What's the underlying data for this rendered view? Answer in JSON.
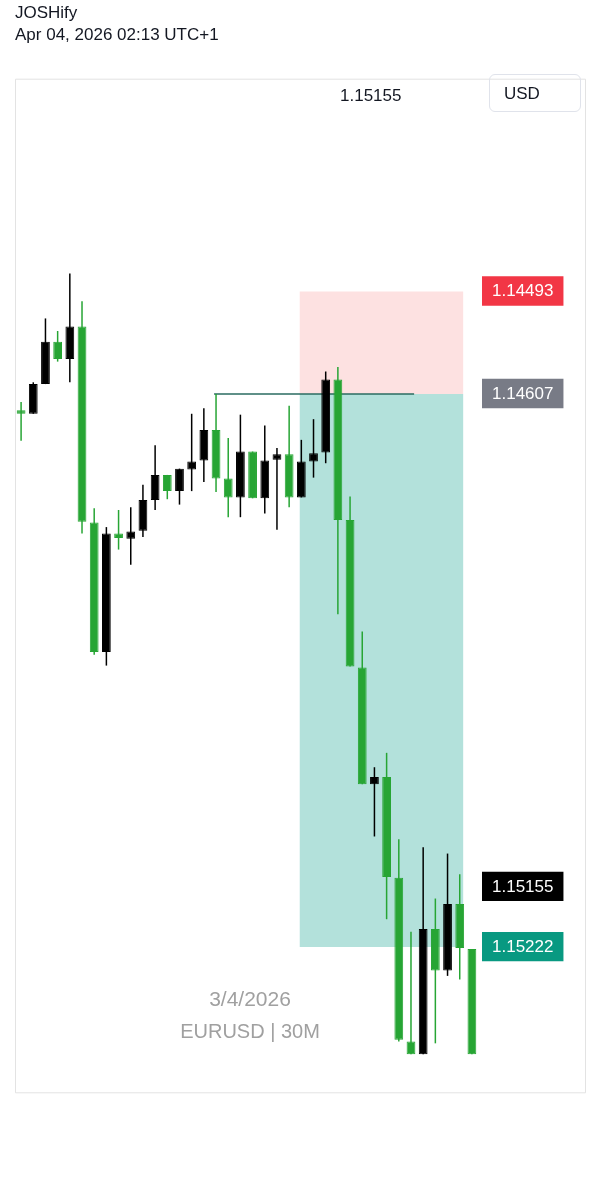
{
  "chart_data": {
    "type": "candlestick",
    "title": "JOSHify",
    "subtitle": "Apr 04, 2026 02:13 UTC+1",
    "annotations": [
      "1.15155",
      "USD",
      "3/4/2026",
      "EURUSD | 30M"
    ],
    "categories": [
      null,
      null,
      null,
      null,
      null,
      null,
      null,
      null,
      null,
      null,
      null,
      null,
      null,
      null,
      null,
      null,
      null,
      null,
      null,
      null,
      null,
      null,
      null,
      null,
      null,
      null,
      null,
      null,
      null,
      null,
      null,
      null,
      null,
      null,
      null,
      null,
      null,
      null
    ],
    "ohlc": [
      [
        1.14625,
        1.14659,
        1.14616,
        1.14629
      ],
      [
        1.14629,
        1.14629,
        1.14594,
        1.14596
      ],
      [
        1.14596,
        1.14596,
        1.14523,
        1.14549
      ],
      [
        1.14549,
        1.14571,
        1.14537,
        1.14568
      ],
      [
        1.14568,
        1.14594,
        1.14473,
        1.14532
      ],
      [
        1.14532,
        1.14762,
        1.14504,
        1.14749
      ],
      [
        1.1475,
        1.14897,
        1.14734,
        1.14894
      ],
      [
        1.14894,
        1.14909,
        1.14755,
        1.14762
      ],
      [
        1.14762,
        1.1478,
        1.14736,
        1.14767
      ],
      [
        1.14768,
        1.14797,
        1.14733,
        1.1476
      ],
      [
        1.14759,
        1.14766,
        1.14708,
        1.14725
      ],
      [
        1.14725,
        1.14736,
        1.14664,
        1.14697
      ],
      [
        1.14697,
        1.14724,
        1.14697,
        1.14715
      ],
      [
        1.14715,
        1.1473,
        1.1469,
        1.1469
      ],
      [
        1.14691,
        1.14715,
        1.14629,
        1.14682
      ],
      [
        1.14681,
        1.14705,
        1.14623,
        1.14647
      ],
      [
        1.14647,
        1.14716,
        1.14607,
        1.14701
      ],
      [
        1.14701,
        1.14744,
        1.14656,
        1.14722
      ],
      [
        1.14722,
        1.14744,
        1.1463,
        1.14671
      ],
      [
        1.14671,
        1.14723,
        1.14671,
        1.14723
      ],
      [
        1.14723,
        1.1474,
        1.14642,
        1.14681
      ],
      [
        1.1468,
        1.14758,
        1.14667,
        1.14674
      ],
      [
        1.14674,
        1.14733,
        1.1462,
        1.14722
      ],
      [
        1.14722,
        1.14722,
        1.14658,
        1.14682
      ],
      [
        1.14682,
        1.147,
        1.14635,
        1.14673
      ],
      [
        1.14672,
        1.14684,
        1.14582,
        1.14591
      ],
      [
        1.14591,
        1.14852,
        1.14577,
        1.14747
      ],
      [
        1.14747,
        1.1491,
        1.14721,
        1.1491
      ],
      [
        1.14911,
        1.15041,
        1.14871,
        1.15041
      ],
      [
        1.15041,
        1.15099,
        1.15022,
        1.15033
      ],
      [
        1.15033,
        1.15191,
        1.15006,
        1.15144
      ],
      [
        1.15145,
        1.15327,
        1.15102,
        1.15325
      ],
      [
        1.15327,
        1.15341,
        1.15205,
        1.15341
      ],
      [
        1.15341,
        1.15341,
        1.15111,
        1.15202
      ],
      [
        1.15202,
        1.15329,
        1.15168,
        1.15248
      ],
      [
        1.15248,
        1.15254,
        1.15118,
        1.15174
      ],
      [
        1.15174,
        1.15258,
        1.15141,
        1.15223
      ],
      [
        1.15224,
        1.15341,
        1.15224,
        1.15341
      ]
    ],
    "colors": [
      "#27a534",
      "#000000",
      "#000000",
      "#27a534",
      "#000000",
      "#27a534",
      "#27a534",
      "#000000",
      "#27a534",
      "#000000",
      "#000000",
      "#000000",
      "#27a534",
      "#000000",
      "#000000",
      "#000000",
      "#27a534",
      "#27a534",
      "#000000",
      "#27a534",
      "#000000",
      "#000000",
      "#27a534",
      "#000000",
      "#000000",
      "#000000",
      "#27a534",
      "#27a534",
      "#27a534",
      "#000000",
      "#27a534",
      "#27a534",
      "#27a534",
      "#000000",
      "#27a534",
      "#000000",
      "#27a534",
      "#27a534"
    ],
    "ylim": [
      1.15384,
      1.14257
    ],
    "yticks": [
      1.14493,
      1.14607,
      1.15155,
      1.15222
    ],
    "tick_labels": "y",
    "legend": false,
    "grid": false,
    "bands": [
      {
        "axis": "y",
        "from": 1.14493,
        "to": 1.14607,
        "color": "#fde1e1"
      },
      {
        "axis": "y",
        "from": 1.14607,
        "to": 1.15222,
        "color": "#b3e1db"
      }
    ],
    "ref_lines": [
      {
        "axis": "y",
        "value": 1.14607,
        "color": "#2a6b60",
        "line_style": "solid"
      }
    ]
  }
}
